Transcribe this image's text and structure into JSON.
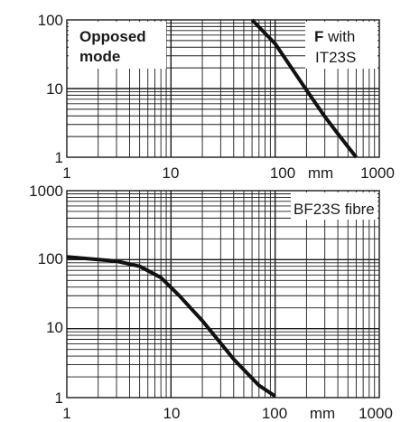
{
  "chart_data": [
    {
      "type": "line",
      "panel": "top",
      "x_scale": "log",
      "y_scale": "log",
      "xlim": [
        1,
        1000
      ],
      "ylim": [
        1,
        100
      ],
      "x_ticks": [
        "1",
        "10",
        "100",
        "1000"
      ],
      "y_ticks": [
        "100",
        "10",
        "1"
      ],
      "x_unit": "mm",
      "grid": true,
      "annotations": {
        "left_line1": "Opposed",
        "left_line2": "mode",
        "right_bold": "F",
        "right_rest": " with",
        "right_line2": "IT23S"
      },
      "series": [
        {
          "x": [
            60,
            100,
            200,
            300,
            400,
            600
          ],
          "y": [
            100,
            45,
            9.5,
            3.9,
            2.2,
            1.0
          ]
        }
      ]
    },
    {
      "type": "line",
      "panel": "bottom",
      "x_scale": "log",
      "y_scale": "log",
      "xlim": [
        1,
        1000
      ],
      "ylim": [
        1,
        1000
      ],
      "x_ticks": [
        "1",
        "10",
        "100",
        "1000"
      ],
      "y_ticks": [
        "1000",
        "100",
        "10",
        "1"
      ],
      "x_unit": "mm",
      "grid": true,
      "annotations": {
        "right_line1": "BF23S fibre"
      },
      "series": [
        {
          "x": [
            1,
            2,
            3,
            5,
            8,
            12,
            20,
            40,
            70,
            100
          ],
          "y": [
            110,
            100,
            95,
            80,
            55,
            30,
            13,
            3.6,
            1.5,
            1.05
          ]
        }
      ]
    }
  ]
}
